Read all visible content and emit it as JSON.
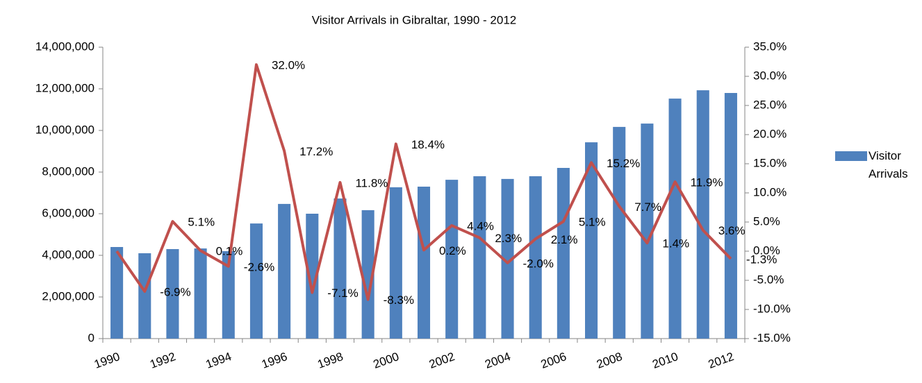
{
  "chart_data": {
    "type": "bar",
    "title": "Visitor Arrivals in Gibraltar, 1990 - 2012",
    "categories": [
      "1990",
      null,
      "1992",
      null,
      "1994",
      null,
      "1996",
      null,
      "1998",
      null,
      "2000",
      null,
      "2002",
      null,
      "2004",
      null,
      "2006",
      null,
      "2008",
      null,
      "2010",
      null,
      "2012"
    ],
    "series": [
      {
        "name": "Visitor Arrivals",
        "type": "bar",
        "color": "#4f81bd",
        "values": [
          4400000,
          4100000,
          4300000,
          4330000,
          4200000,
          5530000,
          6470000,
          6000000,
          6730000,
          6170000,
          7270000,
          7300000,
          7630000,
          7800000,
          7670000,
          7800000,
          8200000,
          9430000,
          10170000,
          10330000,
          11530000,
          11930000,
          11800000
        ]
      },
      {
        "type": "line",
        "axis": "y2",
        "color": "#c0504d",
        "values": [
          0,
          -6.9,
          5.1,
          0.1,
          -2.6,
          32.0,
          17.2,
          -7.1,
          11.8,
          -8.3,
          18.4,
          0.2,
          4.4,
          2.3,
          -2.0,
          2.1,
          5.1,
          15.2,
          7.7,
          1.4,
          11.9,
          3.6,
          -1.3
        ],
        "value_labels": [
          null,
          "-6.9%",
          "5.1%",
          "0.1%",
          "-2.6%",
          "32.0%",
          "17.2%",
          "-7.1%",
          "11.8%",
          "-8.3%",
          "18.4%",
          "0.2%",
          "4.4%",
          "2.3%",
          "-2.0%",
          "2.1%",
          "5.1%",
          "15.2%",
          "7.7%",
          "1.4%",
          "11.9%",
          "3.6%",
          "-1.3%"
        ]
      }
    ],
    "ylim": [
      0,
      14000000
    ],
    "yticks": [
      0,
      {
        "value": 2000000,
        "label": "2,000,000"
      },
      {
        "value": 4000000,
        "label": "4,000,000"
      },
      {
        "value": 6000000,
        "label": "6,000,000"
      },
      {
        "value": 8000000,
        "label": "8,000,000"
      },
      {
        "value": 10000000,
        "label": "10,000,000"
      },
      {
        "value": 12000000,
        "label": "12,000,000"
      },
      {
        "value": 14000000,
        "label": "14,000,000"
      }
    ],
    "y2lim": [
      -15,
      35
    ],
    "y2ticks": [
      {
        "value": -15,
        "label": "-15.0%"
      },
      {
        "value": -10,
        "label": "-10.0%"
      },
      {
        "value": -5,
        "label": "-5.0%"
      },
      {
        "value": 0,
        "label": "0.0%"
      },
      {
        "value": 5,
        "label": "5.0%"
      },
      {
        "value": 10,
        "label": "10.0%"
      },
      {
        "value": 15,
        "label": "15.0%"
      },
      {
        "value": 20,
        "label": "20.0%"
      },
      {
        "value": 25,
        "label": "25.0%"
      },
      {
        "value": 30,
        "label": "30.0%"
      },
      {
        "value": 35,
        "label": "35.0%"
      }
    ],
    "grid": false,
    "legend": "right"
  }
}
